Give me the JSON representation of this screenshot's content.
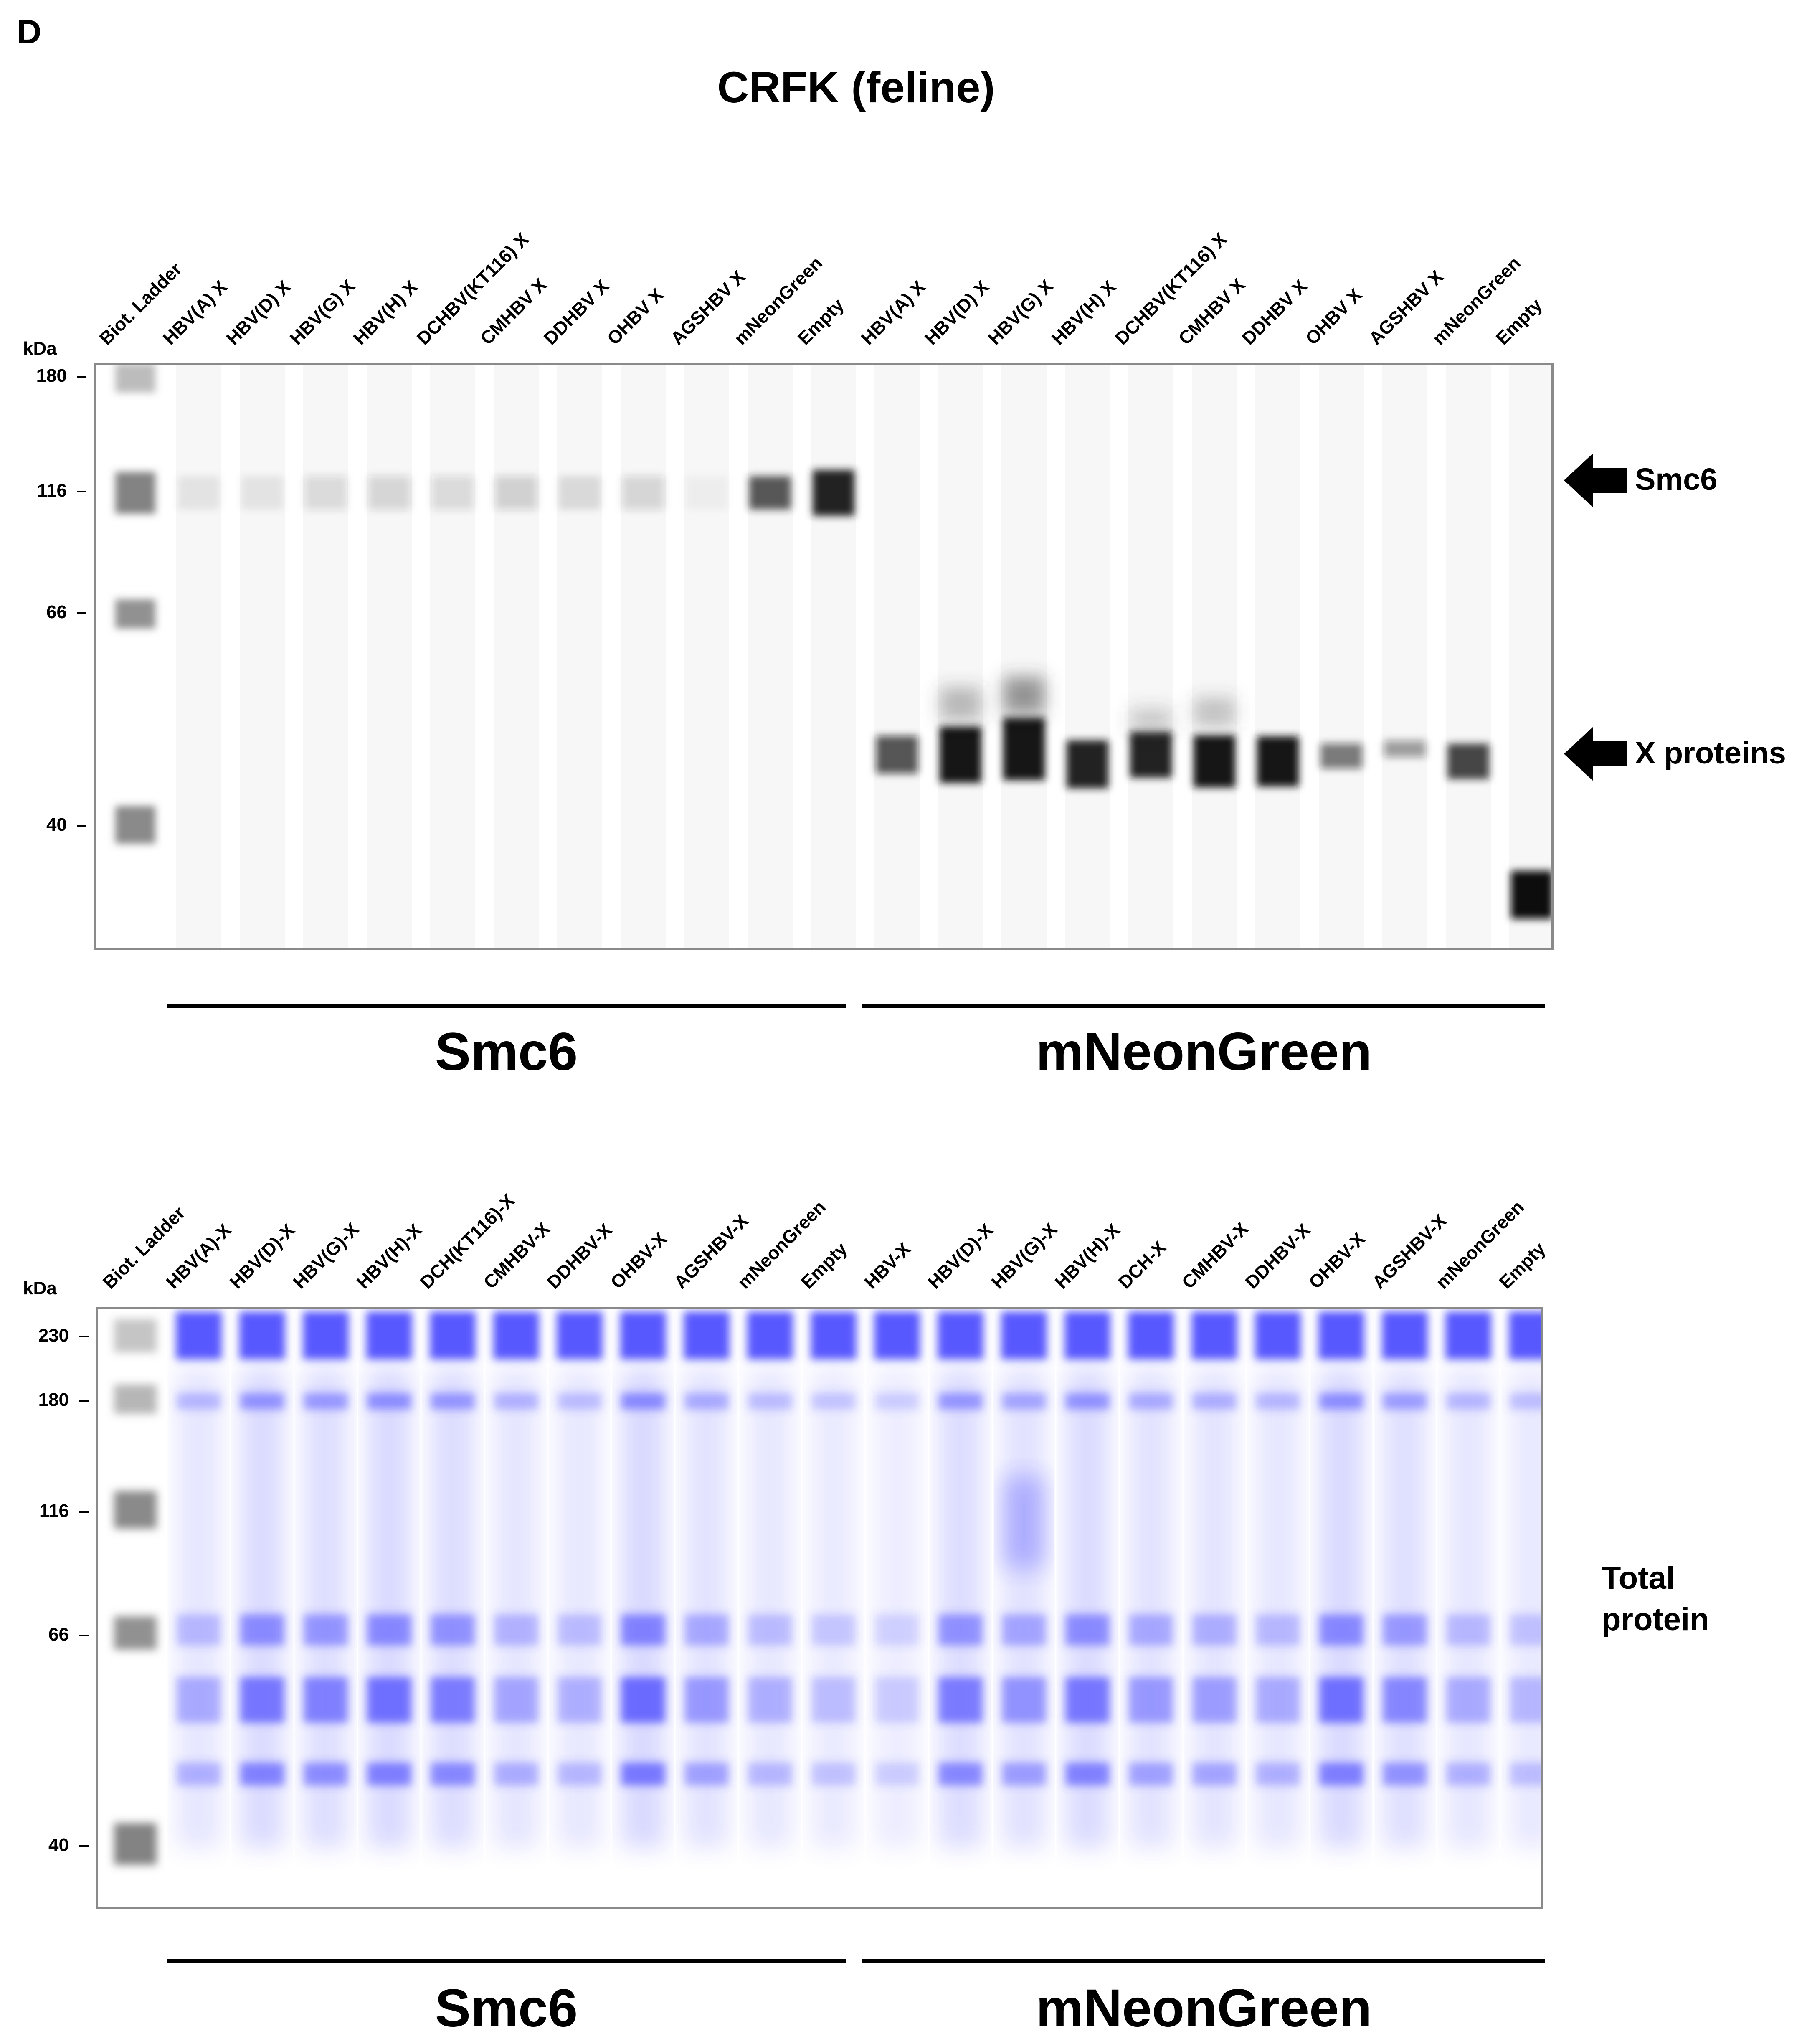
{
  "panel_letter": "D",
  "title": "CRFK (feline)",
  "kda_label": "kDa",
  "top_blot": {
    "lanes": [
      "Biot. Ladder",
      "HBV(A) X",
      "HBV(D) X",
      "HBV(G) X",
      "HBV(H) X",
      "DCHBV(KT116) X",
      "CMHBV X",
      "DDHBV X",
      "OHBV X",
      "AGSHBV X",
      "mNeonGreen",
      "Empty",
      "HBV(A) X",
      "HBV(D) X",
      "HBV(G) X",
      "HBV(H) X",
      "DCHBV(KT116) X",
      "CMHBV X",
      "DDHBV X",
      "OHBV X",
      "AGSHBV X",
      "mNeonGreen",
      "Empty"
    ],
    "markers": [
      "180",
      "116",
      "66",
      "40"
    ],
    "arrows": [
      "Smc6",
      "X proteins"
    ],
    "groups": [
      "Smc6",
      "mNeonGreen"
    ]
  },
  "bottom_blot": {
    "lanes": [
      "Biot. Ladder",
      "HBV(A)-X",
      "HBV(D)-X",
      "HBV(G)-X",
      "HBV(H)-X",
      "DCH(KT116)-X",
      "CMHBV-X",
      "DDHBV-X",
      "OHBV-X",
      "AGSHBV-X",
      "mNeonGreen",
      "Empty",
      "HBV-X",
      "HBV(D)-X",
      "HBV(G)-X",
      "HBV(H)-X",
      "DCH-X",
      "CMHBV-X",
      "DDHBV-X",
      "OHBV-X",
      "AGSHBV-X",
      "mNeonGreen",
      "Empty"
    ],
    "markers": [
      "230",
      "180",
      "116",
      "66",
      "40"
    ],
    "side_label": [
      "Total",
      "protein"
    ],
    "groups": [
      "Smc6",
      "mNeonGreen"
    ]
  },
  "colors": {
    "band_dark": "#1a1a1a",
    "band_blue": "#4b4bff",
    "ladder_gray": "#6d6d6d",
    "frame": "#8a8a8a"
  }
}
